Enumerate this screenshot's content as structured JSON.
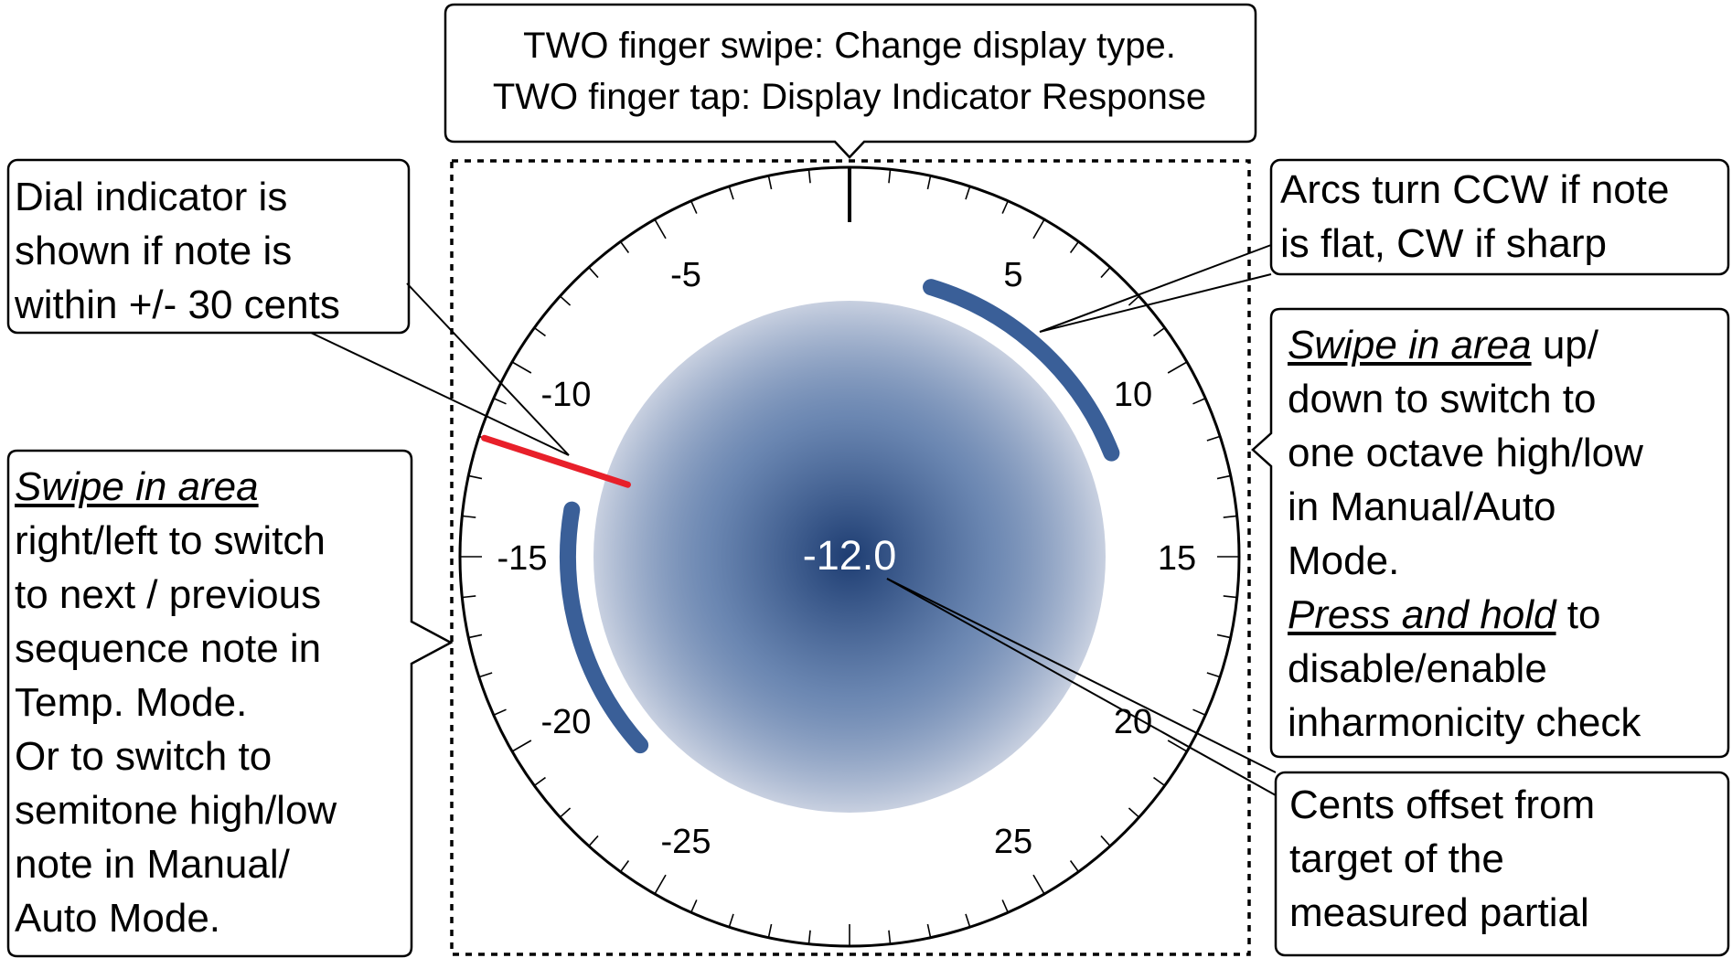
{
  "callouts": {
    "top": {
      "lines": [
        "TWO finger swipe: Change display type.",
        "TWO finger tap: Display Indicator Response"
      ]
    },
    "dial_indicator": {
      "lines": [
        "Dial indicator is",
        "shown if note is",
        "within +/- 30 cents"
      ]
    },
    "arcs": {
      "lines": [
        "Arcs turn CCW if note",
        "is flat, CW if sharp"
      ]
    },
    "vertical_swipe": {
      "swipe_phrase": "Swipe in area",
      "line1_rest": " up/",
      "lines_mid": [
        "down to switch to",
        "one octave high/low",
        "in Manual/Auto",
        "Mode."
      ],
      "press_phrase": "Press and hold",
      "press_rest": " to",
      "lines_end": [
        "disable/enable",
        "inharmonicity check"
      ]
    },
    "horizontal_swipe": {
      "swipe_phrase": "Swipe in area",
      "lines": [
        "right/left to switch",
        "to next / previous",
        "sequence note in",
        "Temp. Mode.",
        "Or to switch to",
        "semitone high/low",
        "note in Manual/",
        "Auto Mode."
      ]
    },
    "cents_offset": {
      "lines": [
        "Cents offset from",
        "target of the",
        "measured partial"
      ]
    }
  },
  "dial": {
    "tick_labels": [
      "-25",
      "-20",
      "-15",
      "-10",
      "-5",
      "5",
      "10",
      "15",
      "20",
      "25"
    ],
    "tick_values": [
      -25,
      -20,
      -15,
      -10,
      -5,
      5,
      10,
      15,
      20,
      25
    ],
    "range_cents": [
      -30,
      30
    ],
    "reading": "-12.0",
    "indicator_cents": -12.0,
    "colors": {
      "needle": "#e8202a",
      "arcs": "#3a5f98",
      "center_dark": "#1e3d72",
      "center_light": "#c8d0e0",
      "dial_outline": "#000000"
    }
  }
}
